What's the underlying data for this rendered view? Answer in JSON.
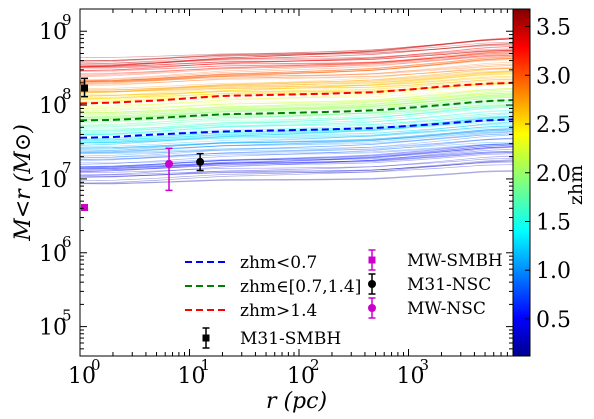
{
  "chart_data": {
    "type": "line",
    "xlabel": "r (pc)",
    "ylabel": "M<r (M⊙)",
    "x_scale": "log",
    "y_scale": "log",
    "xlim": [
      1,
      9000
    ],
    "ylim": [
      40000,
      2000000000
    ],
    "x_ticks": [
      {
        "value": 1,
        "base": "10",
        "exp": "0"
      },
      {
        "value": 10,
        "base": "10",
        "exp": "1"
      },
      {
        "value": 100,
        "base": "10",
        "exp": "2"
      },
      {
        "value": 1000,
        "base": "10",
        "exp": "3"
      }
    ],
    "y_ticks": [
      {
        "value": 100000,
        "base": "10",
        "exp": "5"
      },
      {
        "value": 1000000,
        "base": "10",
        "exp": "6"
      },
      {
        "value": 10000000,
        "base": "10",
        "exp": "7"
      },
      {
        "value": 100000000,
        "base": "10",
        "exp": "8"
      },
      {
        "value": 1000000000,
        "base": "10",
        "exp": "9"
      }
    ],
    "series": [
      {
        "name": "zhm<0.7",
        "color": "#0000ff",
        "style": "dashed",
        "x": [
          1,
          2,
          5,
          10,
          20,
          50,
          100,
          200,
          500,
          1000,
          2000,
          5000,
          9000
        ],
        "y": [
          36000000,
          37000000,
          40000000,
          42000000,
          44000000,
          45000000,
          46000000,
          47000000,
          49000000,
          52000000,
          56000000,
          62000000,
          64000000
        ]
      },
      {
        "name": "zhm∈[0.7,1.4]",
        "color": "#008000",
        "style": "dashed",
        "x": [
          1,
          2,
          5,
          10,
          20,
          50,
          100,
          200,
          500,
          1000,
          2000,
          5000,
          9000
        ],
        "y": [
          62000000,
          63000000,
          67000000,
          71000000,
          75000000,
          77000000,
          79000000,
          81000000,
          85000000,
          92000000,
          100000000,
          113000000,
          117000000
        ]
      },
      {
        "name": "zhm>1.4",
        "color": "#ff0000",
        "style": "dashed",
        "x": [
          1,
          2,
          5,
          10,
          20,
          50,
          100,
          200,
          500,
          1000,
          2000,
          5000,
          9000
        ],
        "y": [
          105000000,
          108000000,
          115000000,
          124000000,
          133000000,
          137000000,
          140000000,
          143000000,
          150000000,
          162000000,
          178000000,
          195000000,
          200000000
        ]
      }
    ],
    "points": [
      {
        "name": "M31-SMBH",
        "x": 1.1,
        "y": 170000000,
        "yerr_low": 130000000,
        "yerr_high": 230000000,
        "color": "#000000",
        "marker": "square"
      },
      {
        "name": "MW-SMBH",
        "x": 1.1,
        "y": 4100000,
        "yerr_low": 3900000,
        "yerr_high": 4300000,
        "color": "#cc00cc",
        "marker": "square"
      },
      {
        "name": "M31-NSC",
        "x": 12.5,
        "y": 17000000,
        "yerr_low": 13000000,
        "yerr_high": 22000000,
        "color": "#000000",
        "marker": "circle"
      },
      {
        "name": "MW-NSC",
        "x": 6.5,
        "y": 16000000,
        "yerr_low": 7000000,
        "yerr_high": 26000000,
        "color": "#cc00cc",
        "marker": "circle"
      }
    ],
    "colorbar": {
      "label": "zhm",
      "range": [
        0.12,
        3.68
      ],
      "ticks": [
        "0.5",
        "1.0",
        "1.5",
        "2.0",
        "2.5",
        "3.0",
        "3.5"
      ],
      "colormap": "jet"
    }
  }
}
